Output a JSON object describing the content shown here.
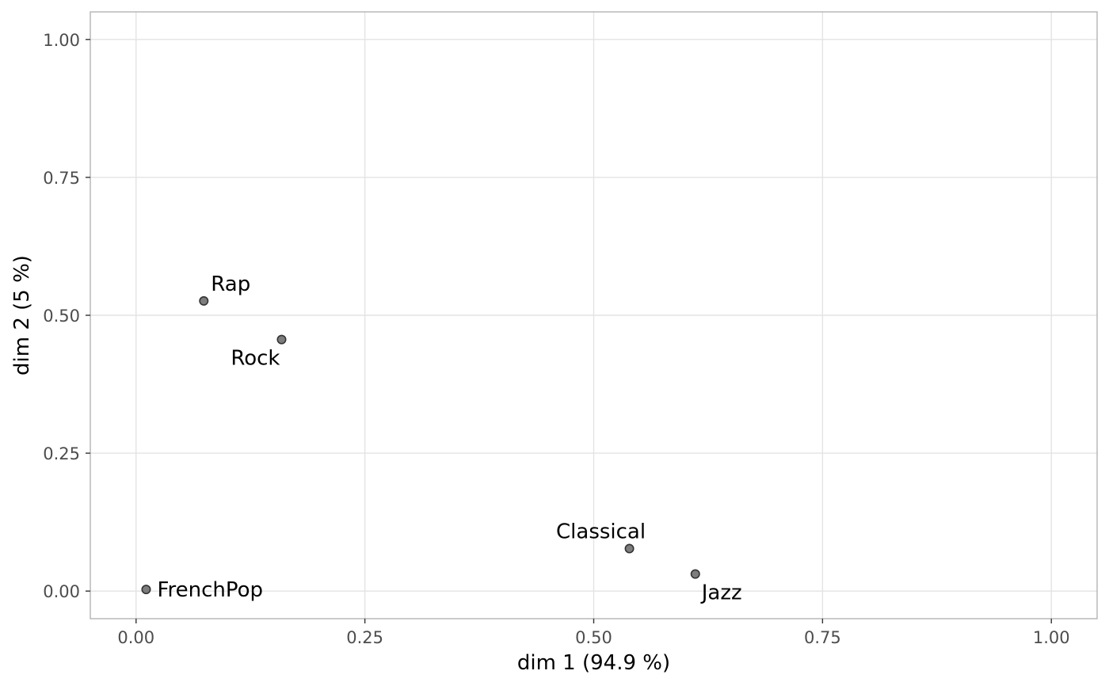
{
  "chart_data": {
    "type": "scatter",
    "title": "",
    "xlabel": "dim 1 (94.9 %)",
    "ylabel": "dim 2 (5 %)",
    "xlim": [
      -0.05,
      1.05
    ],
    "ylim": [
      -0.05,
      1.05
    ],
    "x_ticks": [
      0,
      0.25,
      0.5,
      0.75,
      1
    ],
    "x_tick_labels": [
      "0.00",
      "0.25",
      "0.50",
      "0.75",
      "1.00"
    ],
    "y_ticks": [
      0,
      0.25,
      0.5,
      0.75,
      1
    ],
    "y_tick_labels": [
      "0.00",
      "0.25",
      "0.50",
      "0.75",
      "1.00"
    ],
    "grid": true,
    "points": [
      {
        "label": "Rap",
        "x": 0.074,
        "y": 0.526
      },
      {
        "label": "Rock",
        "x": 0.159,
        "y": 0.456
      },
      {
        "label": "Classical",
        "x": 0.539,
        "y": 0.077
      },
      {
        "label": "Jazz",
        "x": 0.611,
        "y": 0.031
      },
      {
        "label": "FrenchPop",
        "x": 0.011,
        "y": 0.003
      }
    ],
    "colors": {
      "point_fill": "#666666",
      "point_stroke": "#333333",
      "grid": "#e3e3e3",
      "panel_border": "#b3b3b3"
    }
  }
}
